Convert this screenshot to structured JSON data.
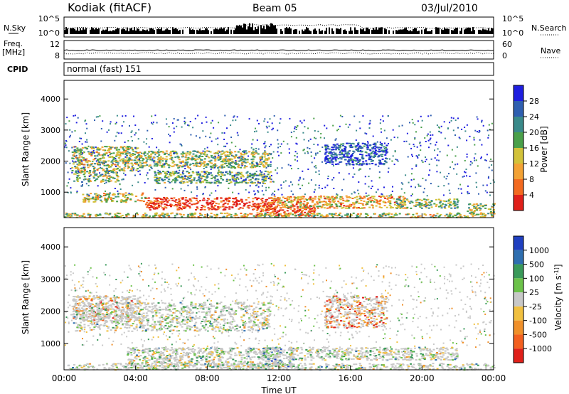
{
  "header": {
    "station": "Kodiak (fitACF)",
    "beam": "Beam 05",
    "date": "03/Jul/2010"
  },
  "noise_panel": {
    "left_label": "N.Sky",
    "right_label": "N.Search",
    "tick_high": "10^5",
    "tick_low": "10^0"
  },
  "freq_panel": {
    "left_label_1": "Freq.",
    "left_label_2": "[MHz]",
    "left_tick_high": "12",
    "left_tick_low": "8",
    "right_label": "Nave",
    "right_tick_high": "60",
    "right_tick_low": "0"
  },
  "cpid": {
    "label": "CPID",
    "value": "normal (fast) 151"
  },
  "time_axis": {
    "label": "Time UT",
    "ticks": [
      "00:00",
      "04:00",
      "08:00",
      "12:00",
      "16:00",
      "20:00",
      "00:00"
    ]
  },
  "chart_data": [
    {
      "type": "heatmap",
      "title": "Power",
      "ylabel": "Slant Range [km]",
      "xlabel": "Time UT",
      "ylim": [
        180,
        4600
      ],
      "xlim": [
        0,
        24
      ],
      "y_ticks": [
        "1000",
        "2000",
        "3000",
        "4000"
      ],
      "colorbar_label": "Power [dB]",
      "colorbar_ticks": [
        "4",
        "8",
        "12",
        "16",
        "20",
        "24",
        "28"
      ],
      "colorbar_colors": [
        "#1f1fe0",
        "#2f5fb0",
        "#3a8a8a",
        "#4aa04a",
        "#d2c23a",
        "#f3a235",
        "#f36a20",
        "#e0201a"
      ],
      "regions": [
        {
          "t0": 0.4,
          "t1": 4.2,
          "r0": 1700,
          "r1": 2500,
          "level": 0.55
        },
        {
          "t0": 0.5,
          "t1": 3.0,
          "r0": 1350,
          "r1": 1700,
          "level": 0.45
        },
        {
          "t0": 4.0,
          "t1": 11.5,
          "r0": 1800,
          "r1": 2350,
          "level": 0.5
        },
        {
          "t0": 5.0,
          "t1": 11.5,
          "r0": 1300,
          "r1": 1700,
          "level": 0.4
        },
        {
          "t0": 4.5,
          "t1": 11.8,
          "r0": 450,
          "r1": 850,
          "level": 0.95
        },
        {
          "t0": 10.5,
          "t1": 14.0,
          "r0": 250,
          "r1": 600,
          "level": 0.9
        },
        {
          "t0": 1.0,
          "t1": 4.5,
          "r0": 700,
          "r1": 1000,
          "level": 0.6
        },
        {
          "t0": 11.5,
          "t1": 19.0,
          "r0": 500,
          "r1": 900,
          "level": 0.65
        },
        {
          "t0": 18.5,
          "t1": 22.0,
          "r0": 500,
          "r1": 800,
          "level": 0.45
        },
        {
          "t0": 14.5,
          "t1": 18.0,
          "r0": 1900,
          "r1": 2600,
          "level": 0.15
        },
        {
          "t0": 0.0,
          "t1": 24.0,
          "r0": 200,
          "r1": 350,
          "level": 0.55
        },
        {
          "t0": 22.5,
          "t1": 24.0,
          "r0": 300,
          "r1": 650,
          "level": 0.5
        },
        {
          "t0": 0.0,
          "t1": 24.0,
          "r0": 900,
          "r1": 3500,
          "level": 0.2
        }
      ]
    },
    {
      "type": "heatmap",
      "title": "Velocity",
      "ylabel": "Slant Range [km]",
      "xlabel": "Time UT",
      "ylim": [
        180,
        4600
      ],
      "xlim": [
        0,
        24
      ],
      "y_ticks": [
        "1000",
        "2000",
        "3000",
        "4000"
      ],
      "colorbar_label": "Velocity [m s^-1]",
      "colorbar_ticks": [
        "1000",
        "500",
        "100",
        "25",
        "-25",
        "-100",
        "-500",
        "-1000"
      ],
      "colorbar_colors": [
        "#2040c0",
        "#2f6fb0",
        "#3a9a5a",
        "#6cc24a",
        "#c8c8c8",
        "#f1c040",
        "#f0902a",
        "#f36020",
        "#e0201a"
      ],
      "regions": [
        {
          "t0": 0.4,
          "t1": 4.2,
          "r0": 1700,
          "r1": 2500,
          "level": 0.7
        },
        {
          "t0": 0.5,
          "t1": 11.5,
          "r0": 1400,
          "r1": 2300,
          "level": 0.45
        },
        {
          "t0": 3.5,
          "t1": 12.0,
          "r0": 300,
          "r1": 900,
          "level": 0.45
        },
        {
          "t0": 11.0,
          "t1": 12.8,
          "r0": 300,
          "r1": 900,
          "level": 0.25
        },
        {
          "t0": 12.5,
          "t1": 22.0,
          "r0": 500,
          "r1": 900,
          "level": 0.45
        },
        {
          "t0": 14.5,
          "t1": 18.0,
          "r0": 1500,
          "r1": 2500,
          "level": 0.8
        },
        {
          "t0": 0.0,
          "t1": 24.0,
          "r0": 200,
          "r1": 400,
          "level": 0.45
        },
        {
          "t0": 0.0,
          "t1": 24.0,
          "r0": 900,
          "r1": 3500,
          "level": 0.5
        }
      ]
    }
  ]
}
